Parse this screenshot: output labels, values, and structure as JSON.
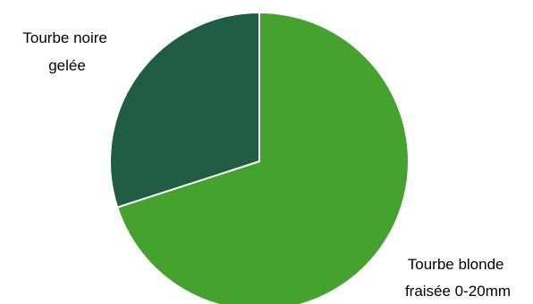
{
  "chart_data": {
    "type": "pie",
    "start_angle_deg": 0,
    "direction": "clockwise",
    "slices": [
      {
        "label_lines": [
          "Tourbe blonde",
          "fraisée 0-20mm"
        ],
        "value": 70,
        "color": "#45A22E"
      },
      {
        "label_lines": [
          "Tourbe noire",
          "gelée"
        ],
        "value": 30,
        "color": "#215C45"
      }
    ],
    "slice_border_color": "#ffffff",
    "legend": "none",
    "data_labels": "category name outside slices"
  }
}
